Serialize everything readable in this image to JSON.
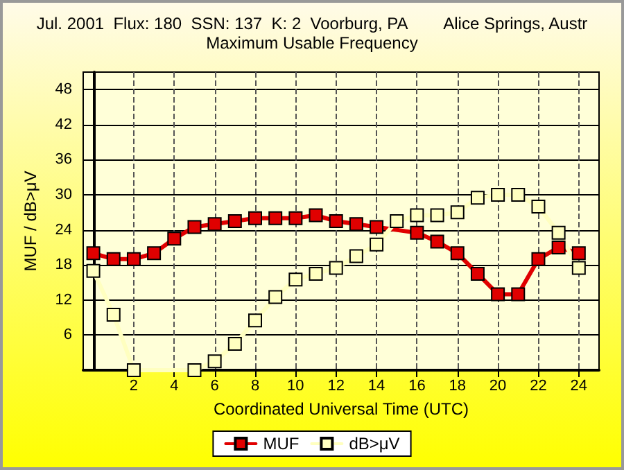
{
  "chart_data": {
    "type": "line",
    "title": "Jul. 2001  Flux: 180  SSN: 137  K: 2  Voorburg, PA        Alice Springs, Austr",
    "subtitle": "Maximum Usable Frequency",
    "xlabel": "Coordinated Universal Time (UTC)",
    "ylabel": "MUF / dB>μV",
    "x": [
      0,
      1,
      2,
      3,
      4,
      5,
      6,
      7,
      8,
      9,
      10,
      11,
      12,
      13,
      14,
      15,
      16,
      17,
      18,
      19,
      20,
      21,
      22,
      23,
      24
    ],
    "series": [
      {
        "name": "MUF",
        "color": "#e00000",
        "values": [
          20,
          19,
          19,
          20,
          22.5,
          24.5,
          25,
          25.5,
          26,
          26,
          26,
          26.5,
          25.5,
          25,
          24.5,
          null,
          23.5,
          22,
          20,
          16.5,
          13,
          13,
          19,
          21,
          20
        ]
      },
      {
        "name": "dB>μV",
        "color": "#ffffc0",
        "values": [
          17,
          9.5,
          0,
          null,
          null,
          0,
          1.5,
          4.5,
          8.5,
          12.5,
          15.5,
          16.5,
          17.5,
          19.5,
          21.5,
          25.5,
          26.5,
          26.5,
          27,
          29.5,
          30,
          30,
          28,
          23.5,
          17.5
        ]
      }
    ],
    "xlim": [
      -0.5,
      25
    ],
    "xticks": [
      2,
      4,
      6,
      8,
      10,
      12,
      14,
      16,
      18,
      20,
      22,
      24
    ],
    "ylim": [
      0,
      51
    ],
    "yticks": [
      6,
      12,
      18,
      24,
      30,
      36,
      42,
      48
    ],
    "grid": true,
    "legend": "bottom",
    "marker": "square",
    "line_style": "solid"
  }
}
